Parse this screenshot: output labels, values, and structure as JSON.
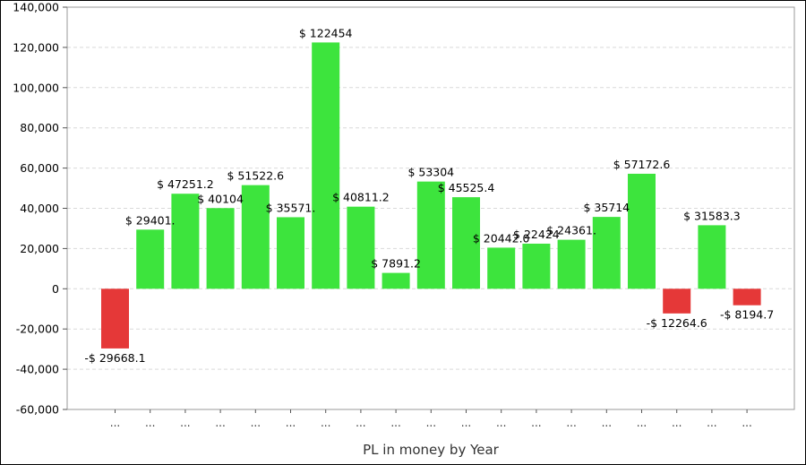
{
  "chart_data": {
    "type": "bar",
    "xlabel": "PL in money by Year",
    "ylabel": "",
    "ylim": [
      -60000,
      140000
    ],
    "yticks": [
      140000,
      120000,
      100000,
      80000,
      60000,
      40000,
      20000,
      0,
      -20000,
      -40000,
      -60000
    ],
    "ytick_labels": [
      "140,000",
      "120,000",
      "100,000",
      "80,000",
      "60,000",
      "40,000",
      "20,000",
      "0",
      "-20,000",
      "-40,000",
      "-60,000"
    ],
    "grid": true,
    "categories": [
      "...",
      "...",
      "...",
      "...",
      "...",
      "...",
      "...",
      "...",
      "...",
      "...",
      "...",
      "...",
      "...",
      "...",
      "...",
      "...",
      "...",
      "...",
      "..."
    ],
    "values": [
      -29668.1,
      29401.0,
      47251.2,
      40104.0,
      51522.6,
      35571.0,
      122454,
      40811.2,
      7891.2,
      53304,
      45525.4,
      20442.0,
      22424.0,
      24361.0,
      35714,
      57172.6,
      -12264.6,
      31583.3,
      -8194.7
    ],
    "data_labels": [
      "-$ 29668.1",
      "$ 29401.",
      "$ 47251.2",
      "$ 40104",
      "$ 51522.6",
      "$ 35571.",
      "$ 122454",
      "$ 40811.2",
      "$ 7891.2",
      "$ 53304",
      "$ 45525.4",
      "$ 20442.0",
      "$ 22424",
      "$ 24361.",
      "$ 35714",
      "$ 57172.6",
      "-$ 12264.6",
      "$ 31583.3",
      "-$ 8194.7"
    ],
    "colors": {
      "positive": "#3de43d",
      "negative": "#e53838",
      "grid": "#d9d9d9",
      "plot_border": "#9a9a9a"
    }
  }
}
